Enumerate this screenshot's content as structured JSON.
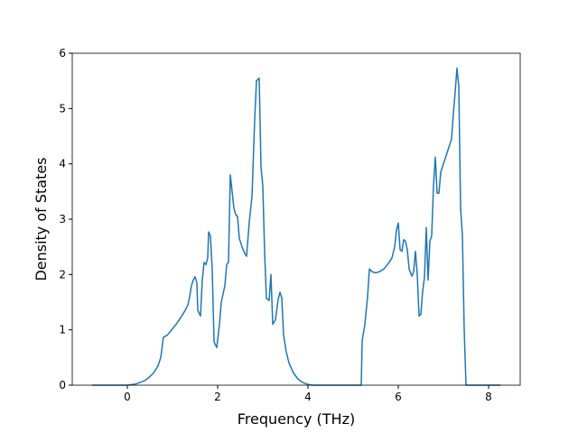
{
  "chart_data": {
    "type": "line",
    "x_label": "Frequency (THz)",
    "y_label": "Density of States",
    "x": [
      -0.78,
      -0.22,
      0,
      0.18,
      0.38,
      0.48,
      0.58,
      0.68,
      0.74,
      0.8,
      0.88,
      0.98,
      1.08,
      1.18,
      1.28,
      1.34,
      1.38,
      1.42,
      1.46,
      1.5,
      1.54,
      1.56,
      1.62,
      1.66,
      1.7,
      1.74,
      1.78,
      1.8,
      1.84,
      1.88,
      1.92,
      1.98,
      2.04,
      2.08,
      2.16,
      2.2,
      2.24,
      2.28,
      2.32,
      2.36,
      2.4,
      2.44,
      2.48,
      2.54,
      2.6,
      2.64,
      2.7,
      2.76,
      2.82,
      2.86,
      2.92,
      2.96,
      3.0,
      3.04,
      3.08,
      3.14,
      3.18,
      3.22,
      3.28,
      3.34,
      3.38,
      3.42,
      3.46,
      3.52,
      3.58,
      3.68,
      3.78,
      3.88,
      3.98,
      4.08,
      5.18,
      5.2,
      5.26,
      5.32,
      5.36,
      5.42,
      5.5,
      5.58,
      5.68,
      5.78,
      5.86,
      5.92,
      5.96,
      6.0,
      6.04,
      6.08,
      6.12,
      6.16,
      6.2,
      6.24,
      6.3,
      6.34,
      6.38,
      6.42,
      6.46,
      6.5,
      6.54,
      6.58,
      6.62,
      6.66,
      6.7,
      6.74,
      6.78,
      6.82,
      6.86,
      6.9,
      6.94,
      7.0,
      7.06,
      7.12,
      7.18,
      7.22,
      7.26,
      7.3,
      7.34,
      7.38,
      7.42,
      7.46,
      7.5,
      8.26
    ],
    "series": [
      {
        "color": "#1f77b4",
        "values": [
          0,
          0,
          0.0,
          0.02,
          0.08,
          0.14,
          0.22,
          0.35,
          0.5,
          0.87,
          0.9,
          1.0,
          1.1,
          1.22,
          1.35,
          1.45,
          1.6,
          1.8,
          1.9,
          1.96,
          1.85,
          1.35,
          1.25,
          1.9,
          2.22,
          2.18,
          2.3,
          2.77,
          2.7,
          2.1,
          0.78,
          0.68,
          1.1,
          1.5,
          1.8,
          2.18,
          2.22,
          3.8,
          3.5,
          3.2,
          3.08,
          3.05,
          2.65,
          2.5,
          2.38,
          2.33,
          2.95,
          3.4,
          4.8,
          5.5,
          5.55,
          3.95,
          3.6,
          2.4,
          1.57,
          1.53,
          2.0,
          1.1,
          1.18,
          1.55,
          1.68,
          1.58,
          0.9,
          0.6,
          0.4,
          0.22,
          0.11,
          0.05,
          0.02,
          0,
          0,
          0.8,
          1.1,
          1.6,
          2.1,
          2.05,
          2.03,
          2.05,
          2.1,
          2.2,
          2.3,
          2.5,
          2.8,
          2.93,
          2.45,
          2.42,
          2.63,
          2.6,
          2.45,
          2.1,
          1.97,
          2.05,
          2.42,
          2.0,
          1.25,
          1.28,
          1.7,
          1.95,
          2.85,
          1.9,
          2.6,
          2.7,
          3.6,
          4.12,
          3.47,
          3.47,
          3.85,
          4.0,
          4.15,
          4.3,
          4.45,
          4.9,
          5.3,
          5.73,
          5.4,
          3.2,
          2.7,
          1.0,
          0,
          0
        ]
      }
    ],
    "xlim": [
      -1.22,
      8.7
    ],
    "ylim": [
      0,
      6
    ],
    "xticks": [
      0,
      2,
      4,
      6,
      8
    ],
    "yticks": [
      0,
      1,
      2,
      3,
      4,
      5,
      6
    ]
  }
}
